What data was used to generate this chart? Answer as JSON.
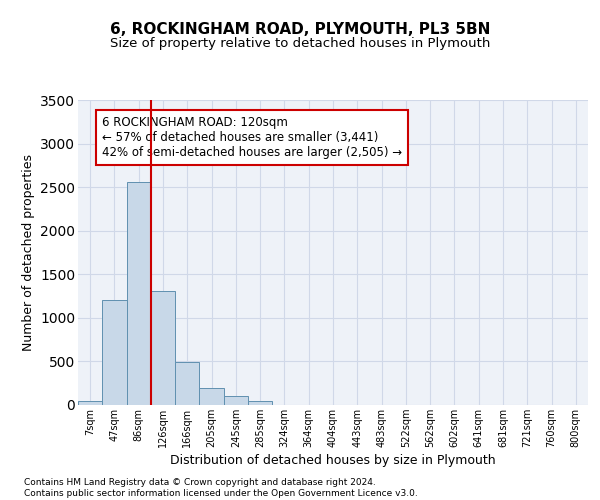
{
  "title1": "6, ROCKINGHAM ROAD, PLYMOUTH, PL3 5BN",
  "title2": "Size of property relative to detached houses in Plymouth",
  "xlabel": "Distribution of detached houses by size in Plymouth",
  "ylabel": "Number of detached properties",
  "categories": [
    "7sqm",
    "47sqm",
    "86sqm",
    "126sqm",
    "166sqm",
    "205sqm",
    "245sqm",
    "285sqm",
    "324sqm",
    "364sqm",
    "404sqm",
    "443sqm",
    "483sqm",
    "522sqm",
    "562sqm",
    "602sqm",
    "641sqm",
    "681sqm",
    "721sqm",
    "760sqm",
    "800sqm"
  ],
  "values": [
    50,
    1200,
    2560,
    1310,
    490,
    190,
    100,
    50,
    0,
    0,
    0,
    0,
    0,
    0,
    0,
    0,
    0,
    0,
    0,
    0,
    0
  ],
  "bar_color": "#c8d8e8",
  "bar_edge_color": "#6090b0",
  "vline_color": "#cc0000",
  "annotation_text": "6 ROCKINGHAM ROAD: 120sqm\n← 57% of detached houses are smaller (3,441)\n42% of semi-detached houses are larger (2,505) →",
  "annotation_box_facecolor": "#ffffff",
  "annotation_box_edgecolor": "#cc0000",
  "ylim": [
    0,
    3500
  ],
  "yticks": [
    0,
    500,
    1000,
    1500,
    2000,
    2500,
    3000,
    3500
  ],
  "grid_color": "#d0d8e8",
  "bg_color": "#eef2f8",
  "footer1": "Contains HM Land Registry data © Crown copyright and database right 2024.",
  "footer2": "Contains public sector information licensed under the Open Government Licence v3.0."
}
